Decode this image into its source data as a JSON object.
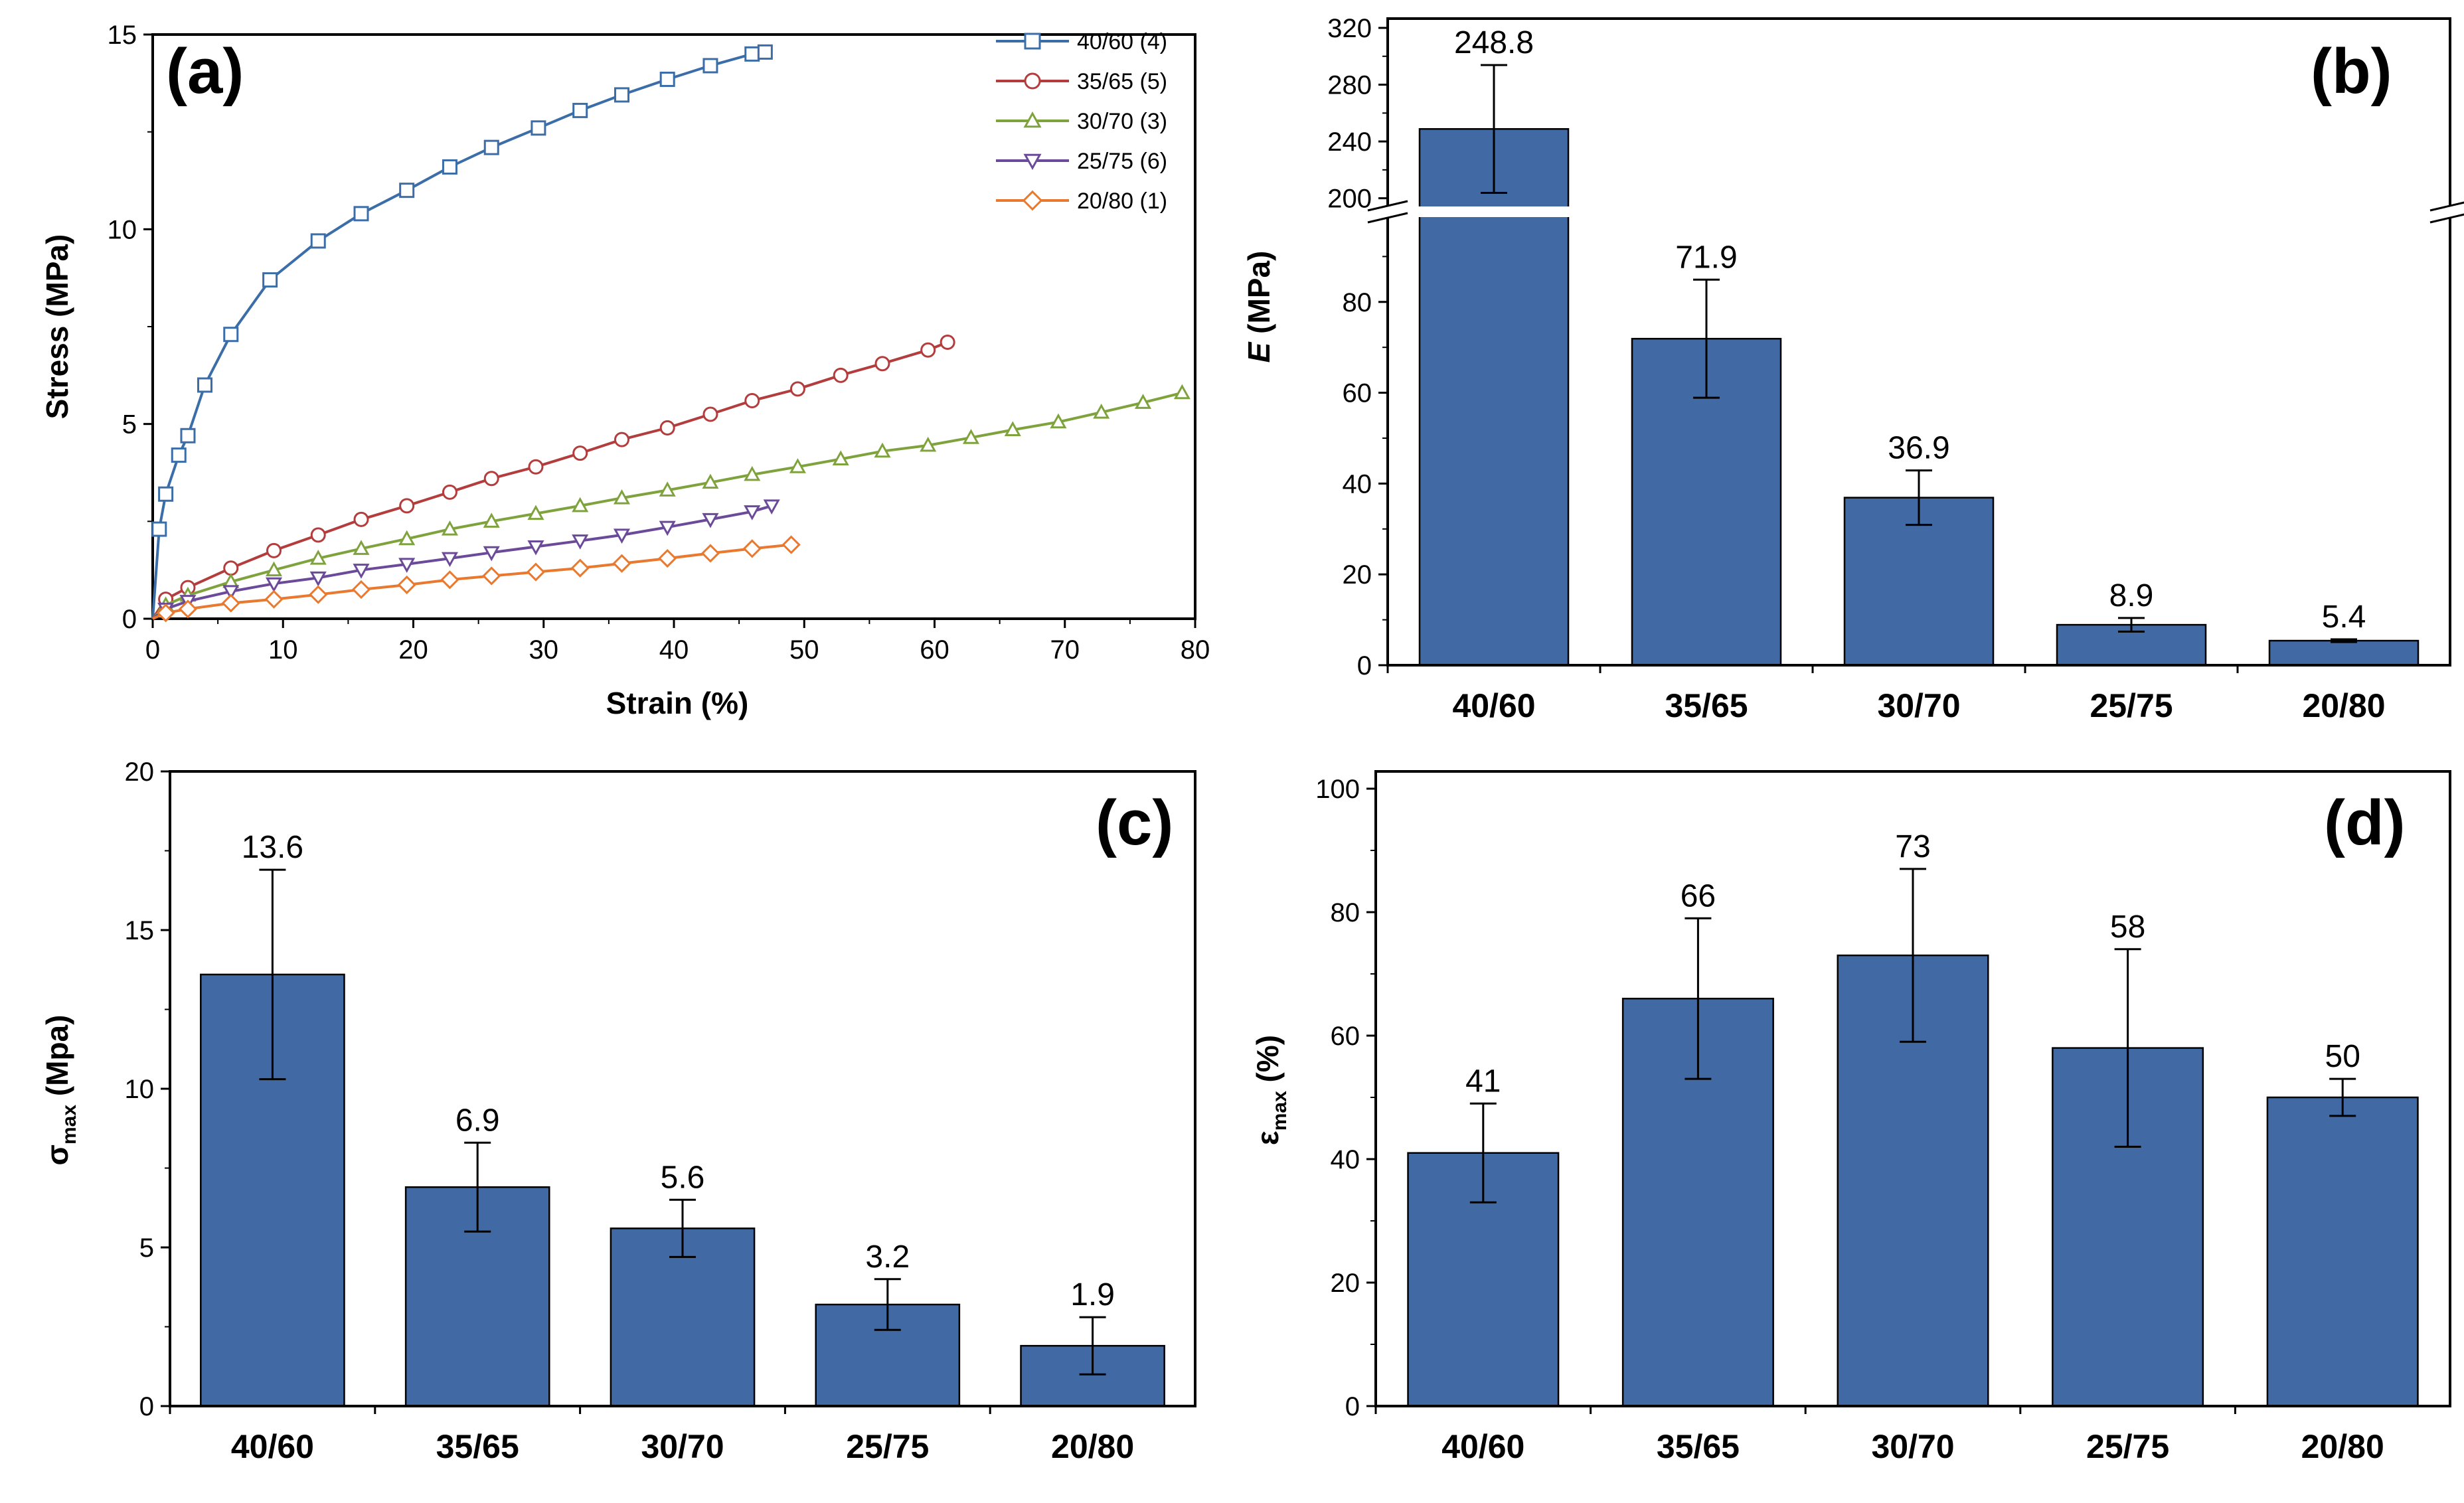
{
  "colors": {
    "bar": "#4169a4",
    "axis": "#000000",
    "series": [
      "#3b6ea8",
      "#b33d3d",
      "#7fa33c",
      "#6b4a9a",
      "#e8792e"
    ]
  },
  "chart_data": [
    {
      "id": "a",
      "panel_label": "(a)",
      "type": "line",
      "xlabel": "Strain (%)",
      "ylabel": "Stress (MPa)",
      "xlim": [
        0,
        80
      ],
      "ylim": [
        0,
        15
      ],
      "x_ticks": [
        "0",
        "10",
        "20",
        "30",
        "40",
        "50",
        "60",
        "70",
        "80"
      ],
      "y_ticks": [
        "0",
        "5",
        "10",
        "15"
      ],
      "legend_position": "top-right",
      "series": [
        {
          "name": "40/60 (4)",
          "marker": "square",
          "x": [
            0,
            0.5,
            1,
            2,
            2.7,
            4,
            6,
            9,
            12.7,
            16,
            19.5,
            22.8,
            26,
            29.6,
            32.8,
            36,
            39.5,
            42.8,
            46,
            47
          ],
          "y": [
            0,
            2.3,
            3.2,
            4.2,
            4.7,
            6.0,
            7.3,
            8.7,
            9.7,
            10.4,
            11.0,
            11.6,
            12.1,
            12.6,
            13.05,
            13.45,
            13.85,
            14.2,
            14.5,
            14.55
          ]
        },
        {
          "name": "35/65 (5)",
          "marker": "circle",
          "x": [
            0,
            1,
            2.7,
            6,
            9.3,
            12.7,
            16,
            19.5,
            22.8,
            26,
            29.4,
            32.8,
            36,
            39.5,
            42.8,
            46,
            49.5,
            52.8,
            56,
            59.5,
            61
          ],
          "y": [
            0,
            0.5,
            0.8,
            1.3,
            1.75,
            2.15,
            2.55,
            2.9,
            3.25,
            3.6,
            3.9,
            4.25,
            4.6,
            4.9,
            5.25,
            5.6,
            5.9,
            6.25,
            6.55,
            6.9,
            7.1
          ]
        },
        {
          "name": "30/70 (3)",
          "marker": "triangle-up",
          "x": [
            0,
            1,
            2.7,
            6,
            9.3,
            12.7,
            16,
            19.5,
            22.8,
            26,
            29.4,
            32.8,
            36,
            39.5,
            42.8,
            46,
            49.5,
            52.8,
            56,
            59.5,
            62.8,
            66,
            69.5,
            72.8,
            76,
            79
          ],
          "y": [
            0,
            0.35,
            0.6,
            0.95,
            1.25,
            1.55,
            1.8,
            2.05,
            2.3,
            2.5,
            2.7,
            2.9,
            3.1,
            3.3,
            3.5,
            3.7,
            3.9,
            4.1,
            4.3,
            4.45,
            4.65,
            4.85,
            5.05,
            5.3,
            5.55,
            5.8
          ]
        },
        {
          "name": "25/75 (6)",
          "marker": "triangle-down",
          "x": [
            0,
            1,
            2.7,
            6,
            9.3,
            12.7,
            16,
            19.5,
            22.8,
            26,
            29.4,
            32.8,
            36,
            39.5,
            42.8,
            46,
            47.5
          ],
          "y": [
            0,
            0.25,
            0.45,
            0.7,
            0.9,
            1.05,
            1.25,
            1.4,
            1.55,
            1.7,
            1.85,
            2.0,
            2.15,
            2.35,
            2.55,
            2.75,
            2.9
          ]
        },
        {
          "name": "20/80 (1)",
          "marker": "diamond",
          "x": [
            0,
            1,
            2.7,
            6,
            9.3,
            12.7,
            16,
            19.5,
            22.8,
            26,
            29.4,
            32.8,
            36,
            39.5,
            42.8,
            46,
            49
          ],
          "y": [
            0,
            0.15,
            0.25,
            0.4,
            0.5,
            0.62,
            0.75,
            0.87,
            1.0,
            1.1,
            1.2,
            1.3,
            1.42,
            1.55,
            1.68,
            1.8,
            1.9
          ]
        }
      ]
    },
    {
      "id": "b",
      "panel_label": "(b)",
      "type": "bar",
      "ylabel_symbol": "E",
      "ylabel_unit": " (MPa)",
      "categories": [
        "40/60",
        "35/65",
        "30/70",
        "25/75",
        "20/80"
      ],
      "values": [
        248.8,
        71.9,
        36.9,
        8.9,
        5.4
      ],
      "value_labels": [
        "248.8",
        "71.9",
        "36.9",
        "8.9",
        "5.4"
      ],
      "errors": [
        45,
        13,
        6,
        1.5,
        0.3
      ],
      "axis_break": {
        "lower_range": [
          0,
          100
        ],
        "upper_range": [
          190,
          320
        ]
      },
      "y_ticks_lower": [
        "0",
        "20",
        "40",
        "60",
        "80"
      ],
      "y_ticks_upper": [
        "200",
        "240",
        "280",
        "320"
      ]
    },
    {
      "id": "c",
      "panel_label": "(c)",
      "type": "bar",
      "ylabel_symbol": "σ",
      "ylabel_sub": "max",
      "ylabel_unit": " (Mpa)",
      "categories": [
        "40/60",
        "35/65",
        "30/70",
        "25/75",
        "20/80"
      ],
      "values": [
        13.6,
        6.9,
        5.6,
        3.2,
        1.9
      ],
      "value_labels": [
        "13.6",
        "6.9",
        "5.6",
        "3.2",
        "1.9"
      ],
      "errors": [
        3.3,
        1.4,
        0.9,
        0.8,
        0.9
      ],
      "ylim": [
        0,
        20
      ],
      "y_ticks": [
        "0",
        "5",
        "10",
        "15",
        "20"
      ]
    },
    {
      "id": "d",
      "panel_label": "(d)",
      "type": "bar",
      "ylabel_symbol": "ε",
      "ylabel_sub": "max",
      "ylabel_unit": " (%)",
      "categories": [
        "40/60",
        "35/65",
        "30/70",
        "25/75",
        "20/80"
      ],
      "values": [
        41,
        66,
        73,
        58,
        50
      ],
      "value_labels": [
        "41",
        "66",
        "73",
        "58",
        "50"
      ],
      "errors": [
        8,
        13,
        14,
        16,
        3
      ],
      "ylim": [
        0,
        100
      ],
      "y_ticks": [
        "0",
        "20",
        "40",
        "60",
        "80",
        "100"
      ]
    }
  ]
}
